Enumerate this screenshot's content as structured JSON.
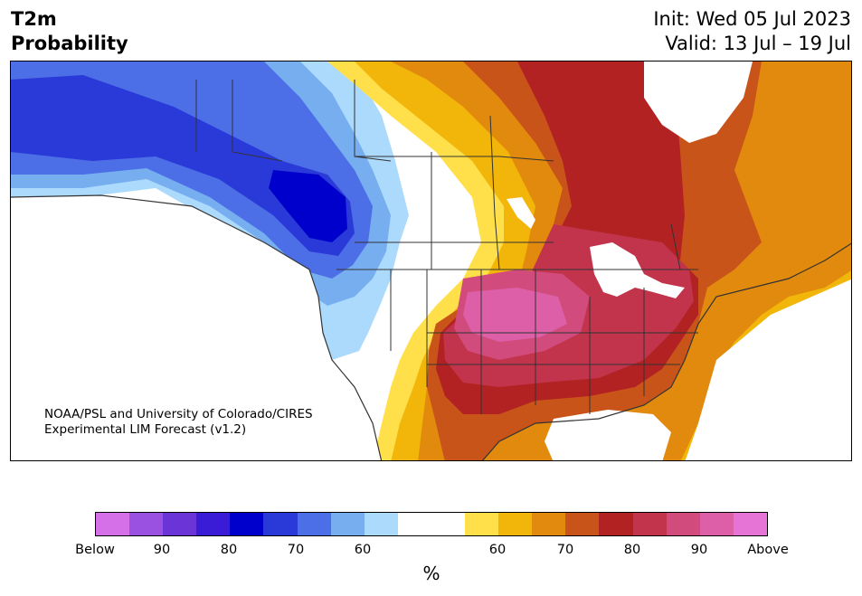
{
  "header": {
    "title_line1": "T2m",
    "title_line2": "Probability",
    "init_text": "Init: Wed 05 Jul 2023",
    "valid_text": "Valid: 13 Jul – 19 Jul"
  },
  "credit": {
    "line1": "NOAA/PSL and University of Colorado/CIRES",
    "line2": "Experimental LIM Forecast (v1.2)"
  },
  "colorbar": {
    "unit": "%",
    "colors": [
      "#d670e8",
      "#9a50e0",
      "#6a34d6",
      "#3a1bd6",
      "#0000cc",
      "#2a3ad8",
      "#4c6ee6",
      "#76aef0",
      "#acdafc",
      "#ffffff",
      "#ffffff",
      "#ffe04a",
      "#f2b50a",
      "#e18a0d",
      "#c9541a",
      "#b22222",
      "#c2334c",
      "#d14b7c",
      "#dc5fa8",
      "#e674d6"
    ],
    "ticks": [
      {
        "label": "Below"
      },
      {
        "label": "90"
      },
      {
        "label": "80"
      },
      {
        "label": "70"
      },
      {
        "label": "60"
      },
      {
        "label": "60"
      },
      {
        "label": "70"
      },
      {
        "label": "80"
      },
      {
        "label": "90"
      },
      {
        "label": "Above"
      }
    ]
  },
  "map": {
    "region": "North America",
    "colors": {
      "cold_60": "#acdafc",
      "cold_70": "#76aef0",
      "cold_75": "#4c6ee6",
      "cold_80": "#2a3ad8",
      "cold_85": "#0000cc",
      "warm_60": "#ffe04a",
      "warm_65": "#f2b50a",
      "warm_70": "#e18a0d",
      "warm_75": "#c9541a",
      "warm_80": "#b22222",
      "warm_85": "#c2334c",
      "warm_90": "#d14b7c",
      "warm_95": "#dc5fa8",
      "border": "#333333"
    }
  }
}
